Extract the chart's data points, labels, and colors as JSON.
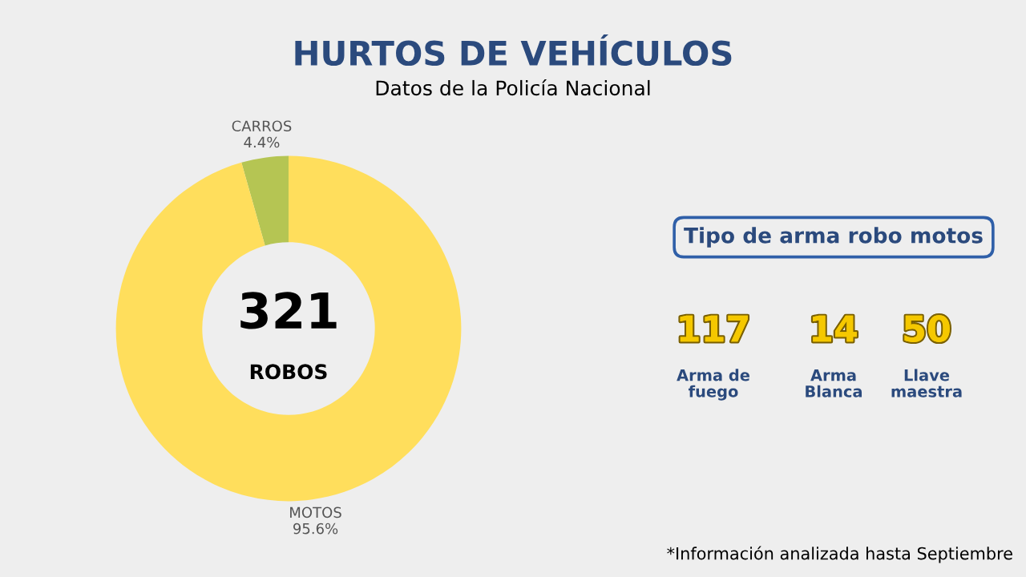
{
  "chart_data": [
    {
      "type": "donut",
      "title": "HURTOS DE VEHÍCULOS",
      "subtitle": "Datos de la Policía Nacional",
      "categories": [
        "CARROS",
        "MOTOS"
      ],
      "values": [
        4.4,
        95.6
      ],
      "value_labels": [
        "4.4%",
        "95.6%"
      ],
      "colors": [
        "#b5c553",
        "#ffde5c"
      ],
      "annotations": [
        "321",
        "ROBOS"
      ]
    },
    {
      "type": "other",
      "title": "Tipo de arma robo motos",
      "categories": [
        "Arma de\nfuego",
        "Arma\nBlanca",
        "Llave\nmaestra"
      ],
      "values": [
        117,
        14,
        50
      ],
      "data_labels": true,
      "annotations": [
        "*Información analizada hasta Septiembre"
      ]
    }
  ]
}
